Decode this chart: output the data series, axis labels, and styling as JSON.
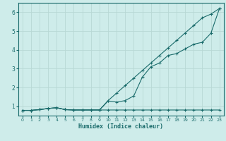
{
  "xlabel": "Humidex (Indice chaleur)",
  "background_color": "#ceecea",
  "grid_color": "#b8d8d5",
  "line_color": "#1a6b6b",
  "x_values": [
    0,
    1,
    2,
    3,
    4,
    5,
    6,
    7,
    8,
    9,
    10,
    11,
    12,
    13,
    14,
    15,
    16,
    17,
    18,
    19,
    20,
    21,
    22,
    23
  ],
  "line_flat_y": [
    0.78,
    0.78,
    0.82,
    0.88,
    0.92,
    0.82,
    0.8,
    0.8,
    0.8,
    0.8,
    0.8,
    0.8,
    0.8,
    0.8,
    0.8,
    0.8,
    0.8,
    0.8,
    0.8,
    0.8,
    0.8,
    0.8,
    0.8,
    0.8
  ],
  "line_linear_y": [
    0.78,
    0.78,
    0.82,
    0.88,
    0.92,
    0.82,
    0.8,
    0.8,
    0.8,
    0.8,
    1.3,
    1.7,
    2.1,
    2.5,
    2.9,
    3.3,
    3.7,
    4.1,
    4.5,
    4.9,
    5.3,
    5.7,
    5.9,
    6.2
  ],
  "line_curve_y": [
    0.78,
    0.78,
    0.82,
    0.88,
    0.92,
    0.82,
    0.8,
    0.8,
    0.8,
    0.8,
    1.28,
    1.22,
    1.3,
    1.55,
    2.55,
    3.1,
    3.3,
    3.7,
    3.8,
    4.05,
    4.3,
    4.4,
    4.88,
    6.2
  ],
  "ylim": [
    0.5,
    6.5
  ],
  "xlim": [
    -0.5,
    23.5
  ],
  "yticks": [
    1,
    2,
    3,
    4,
    5,
    6
  ],
  "xticks": [
    0,
    1,
    2,
    3,
    4,
    5,
    6,
    7,
    8,
    9,
    10,
    11,
    12,
    13,
    14,
    15,
    16,
    17,
    18,
    19,
    20,
    21,
    22,
    23
  ]
}
